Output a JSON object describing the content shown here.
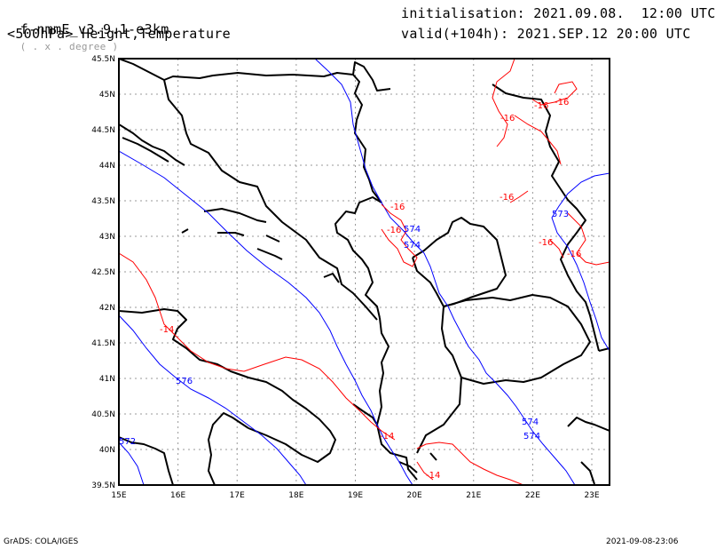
{
  "header": {
    "model": "f-nmmE_v3.9.1-e3km",
    "model_sub": "( . x . degree )",
    "level_vars": "<500hPa> Height,Temperature",
    "init": "initialisation: 2021.09.08.  12:00 UTC",
    "valid": "valid(+104h): 2021.SEP.12 20:00 UTC"
  },
  "map": {
    "lon_labels": [
      "15E",
      "16E",
      "17E",
      "18E",
      "19E",
      "20E",
      "21E",
      "22E",
      "23E"
    ],
    "lat_labels": [
      "45.5N",
      "45N",
      "44.5N",
      "44N",
      "43.5N",
      "43N",
      "42.5N",
      "42N",
      "41.5N",
      "41N",
      "40.5N",
      "40N",
      "39.5N"
    ],
    "lon_range": [
      15,
      23.3
    ],
    "lat_range": [
      39.5,
      45.5
    ],
    "contour_colors": {
      "temperature": "#ff0000",
      "height": "#0000ff",
      "coast": "#000000",
      "grid": "#999999"
    },
    "temp_labels": [
      "-16",
      "-16",
      "-16",
      "-16",
      "-16",
      "-16",
      "-16",
      "-16",
      "-14",
      "-14",
      "-14"
    ],
    "height_labels": [
      "573",
      "574",
      "574",
      "574",
      "574",
      "576",
      "572"
    ]
  },
  "footer": {
    "left": "GrADS: COLA/IGES",
    "right": "2021-09-08-23:06"
  }
}
